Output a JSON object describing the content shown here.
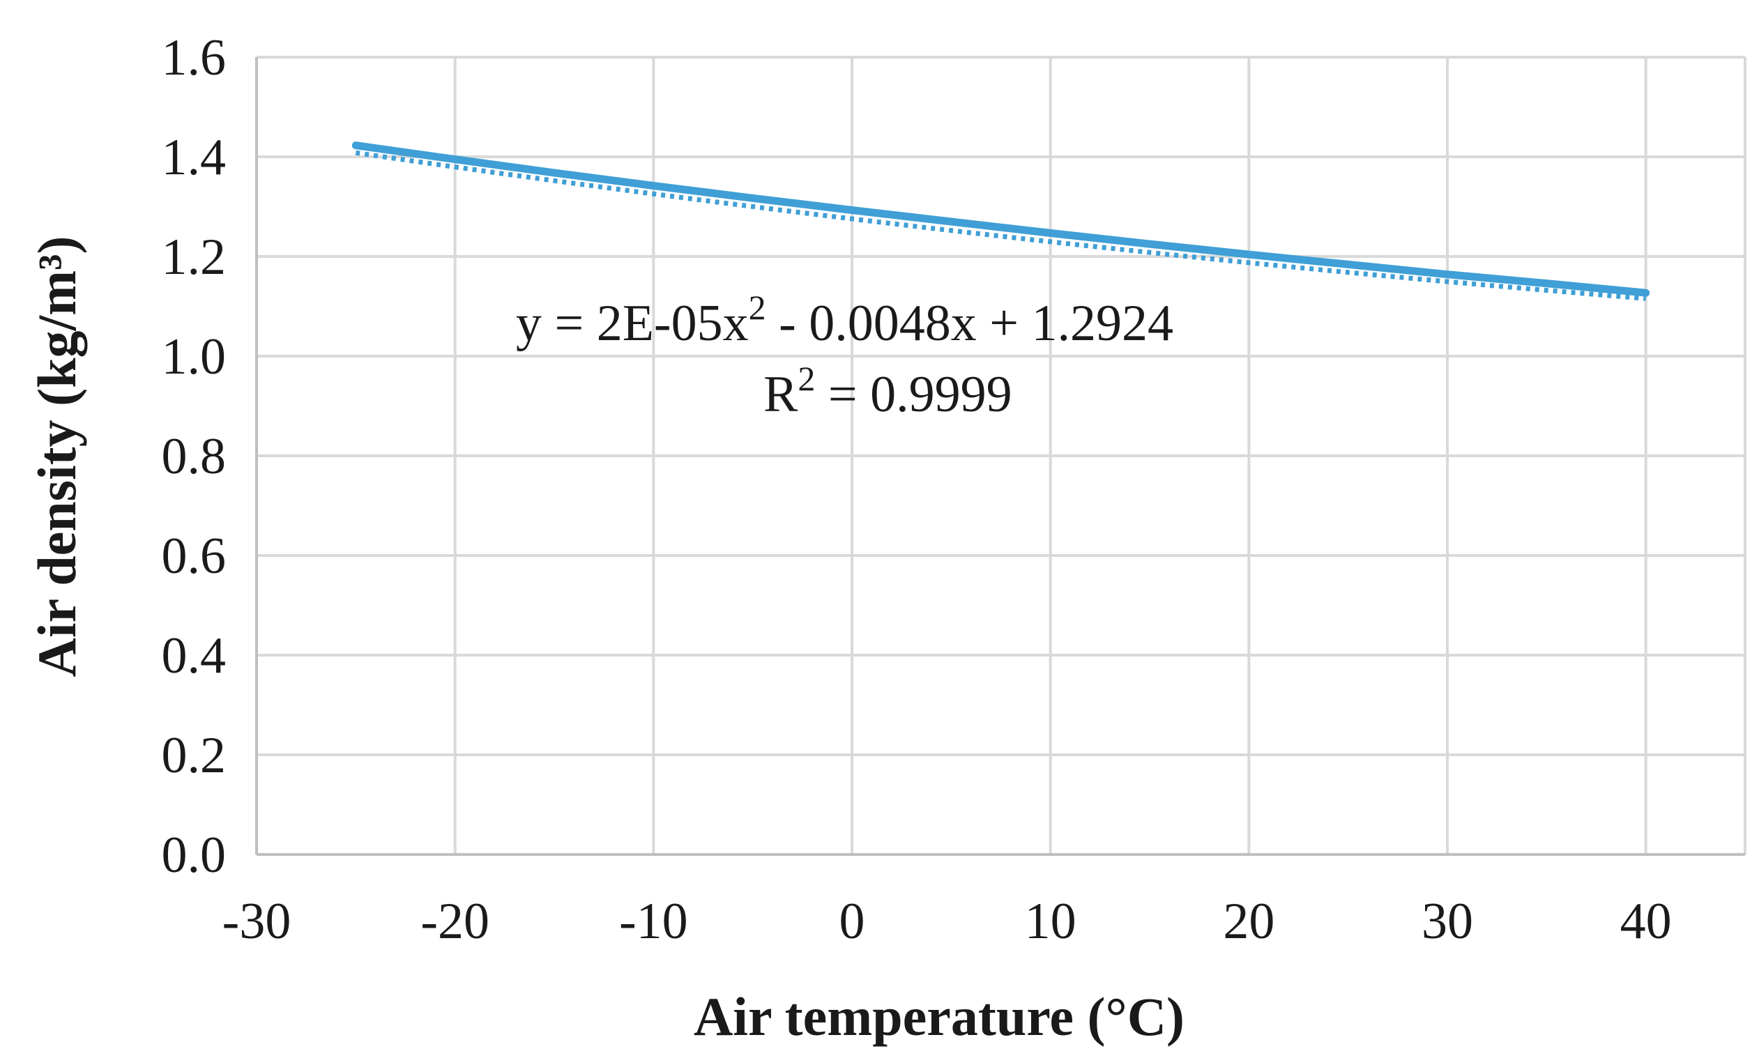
{
  "chart_data": {
    "type": "line",
    "xlabel": "Air temperature (°C)",
    "ylabel": "Air density (kg/m³)",
    "xlim": [
      -30,
      45
    ],
    "ylim": [
      0,
      1.6
    ],
    "x_ticks": [
      -30,
      -20,
      -10,
      0,
      10,
      20,
      30,
      40
    ],
    "x_tick_labels": [
      "-30",
      "-20",
      "-10",
      "0",
      "10",
      "20",
      "30",
      "40"
    ],
    "y_ticks": [
      0,
      0.2,
      0.4,
      0.6,
      0.8,
      1.0,
      1.2,
      1.4,
      1.6
    ],
    "y_tick_labels": [
      "0.0",
      "0.2",
      "0.4",
      "0.6",
      "0.8",
      "1.0",
      "1.2",
      "1.4",
      "1.6"
    ],
    "grid": true,
    "legend": "none",
    "series": [
      {
        "color": "#3f9fd6",
        "x": [
          -25,
          -20,
          -15,
          -10,
          -5,
          0,
          5,
          10,
          15,
          20,
          25,
          30,
          35,
          40
        ],
        "y": [
          1.423,
          1.395,
          1.368,
          1.342,
          1.317,
          1.293,
          1.27,
          1.247,
          1.225,
          1.204,
          1.184,
          1.164,
          1.146,
          1.127
        ]
      }
    ],
    "trendline": {
      "type": "polynomial",
      "order": 2,
      "style": "dotted",
      "coefficients": [
        2e-05,
        -0.0048,
        1.2924
      ],
      "x_range": [
        -25,
        40
      ],
      "equation_line1_prefix": "y = 2E-05x",
      "equation_line1_sup": "2",
      "equation_line1_suffix": " - 0.0048x + 1.2924",
      "r2_prefix": "R",
      "r2_sup": "2",
      "r2_suffix": " = 0.9999"
    }
  }
}
